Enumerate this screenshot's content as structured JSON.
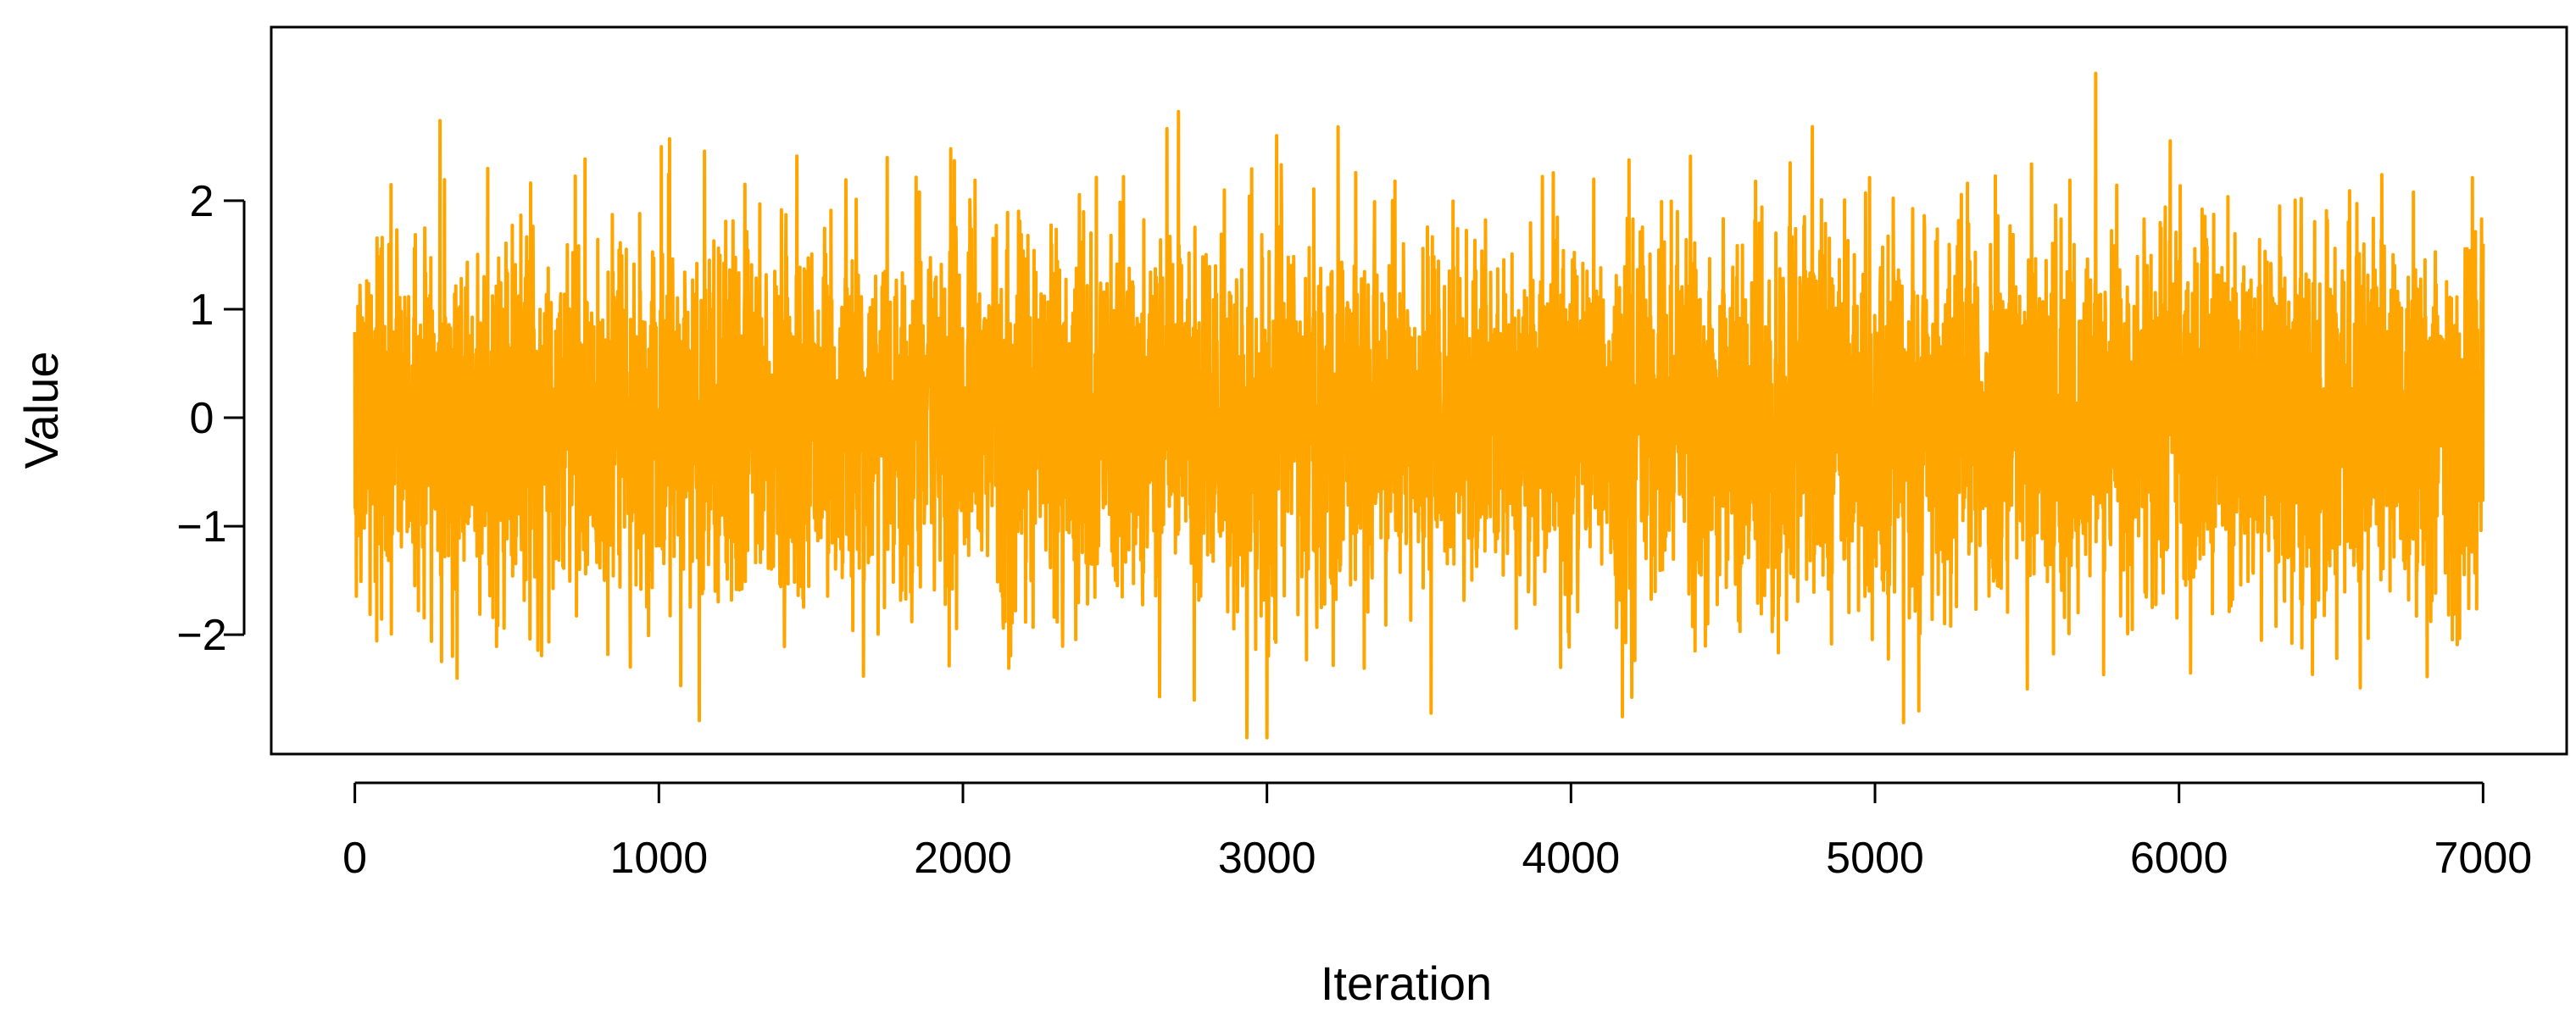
{
  "chart_data": {
    "type": "line",
    "title": "",
    "xlabel": "Iteration",
    "ylabel": "Value",
    "xlim": [
      -275,
      7275
    ],
    "ylim": [
      -3.1,
      3.6
    ],
    "xticks": [
      0,
      1000,
      2000,
      3000,
      4000,
      5000,
      6000,
      7000
    ],
    "yticks": [
      -2,
      -1,
      0,
      1,
      2
    ],
    "ytick_labels": [
      "−2",
      "−1",
      "0",
      "1",
      "2"
    ],
    "grid": false,
    "legend": "none",
    "series": [
      {
        "color": "#FFA500",
        "x": [
          0,
          7000
        ],
        "y": [
          0,
          0
        ],
        "n_points": 7001,
        "mean": 0.0,
        "sd": 0.85
      }
    ]
  }
}
